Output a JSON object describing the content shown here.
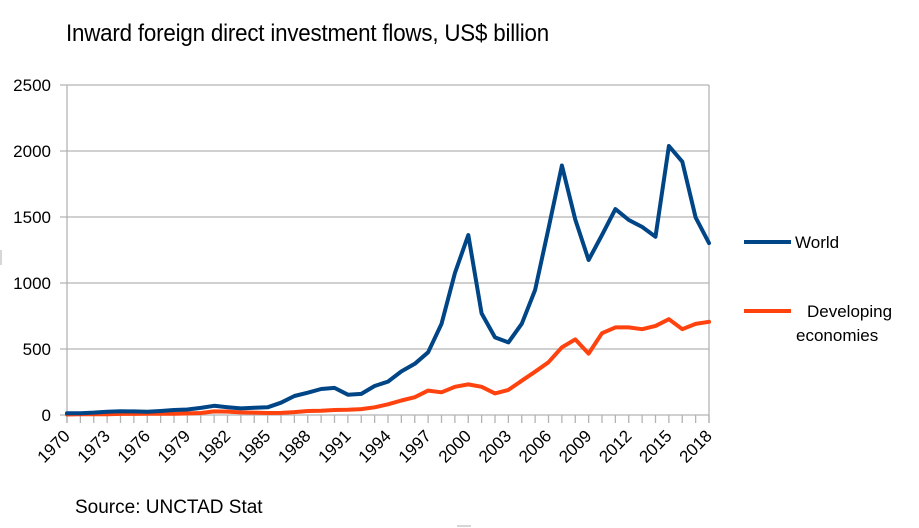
{
  "chart_data": {
    "type": "line",
    "title": "Inward foreign direct investment flows, US$ billion",
    "source": "Source: UNCTAD Stat",
    "xlabel": "",
    "ylabel": "",
    "ylim": [
      0,
      2500
    ],
    "yticks": [
      0,
      500,
      1000,
      1500,
      2000,
      2500
    ],
    "x": [
      1970,
      1971,
      1972,
      1973,
      1974,
      1975,
      1976,
      1977,
      1978,
      1979,
      1980,
      1981,
      1982,
      1983,
      1984,
      1985,
      1986,
      1987,
      1988,
      1989,
      1990,
      1991,
      1992,
      1993,
      1994,
      1995,
      1996,
      1997,
      1998,
      1999,
      2000,
      2001,
      2002,
      2003,
      2004,
      2005,
      2006,
      2007,
      2008,
      2009,
      2010,
      2011,
      2012,
      2013,
      2014,
      2015,
      2016,
      2017,
      2018
    ],
    "xtick_labels": [
      "1970",
      "1973",
      "1976",
      "1979",
      "1982",
      "1985",
      "1988",
      "1991",
      "1994",
      "1997",
      "2000",
      "2003",
      "2006",
      "2009",
      "2012",
      "2015",
      "2018"
    ],
    "grid": "horizontal",
    "legend_position": "right",
    "series": [
      {
        "name": "World",
        "color": "#004586",
        "values": [
          13,
          14,
          18,
          25,
          28,
          27,
          25,
          30,
          38,
          42,
          54,
          70,
          59,
          50,
          55,
          58,
          93,
          144,
          169,
          197,
          205,
          154,
          160,
          220,
          253,
          330,
          388,
          475,
          690,
          1075,
          1364,
          770,
          588,
          550,
          692,
          947,
          1414,
          1890,
          1480,
          1174,
          1364,
          1560,
          1477,
          1425,
          1351,
          2038,
          1919,
          1497,
          1302
        ]
      },
      {
        "name": "Developing economies",
        "color": "#ff420e",
        "values": [
          4,
          5,
          5,
          6,
          8,
          8,
          9,
          9,
          10,
          12,
          15,
          27,
          26,
          20,
          18,
          15,
          16,
          22,
          30,
          32,
          38,
          40,
          45,
          58,
          81,
          110,
          135,
          185,
          172,
          214,
          232,
          214,
          164,
          190,
          260,
          328,
          400,
          513,
          573,
          465,
          620,
          664,
          664,
          650,
          675,
          726,
          650,
          690,
          706
        ]
      }
    ]
  }
}
